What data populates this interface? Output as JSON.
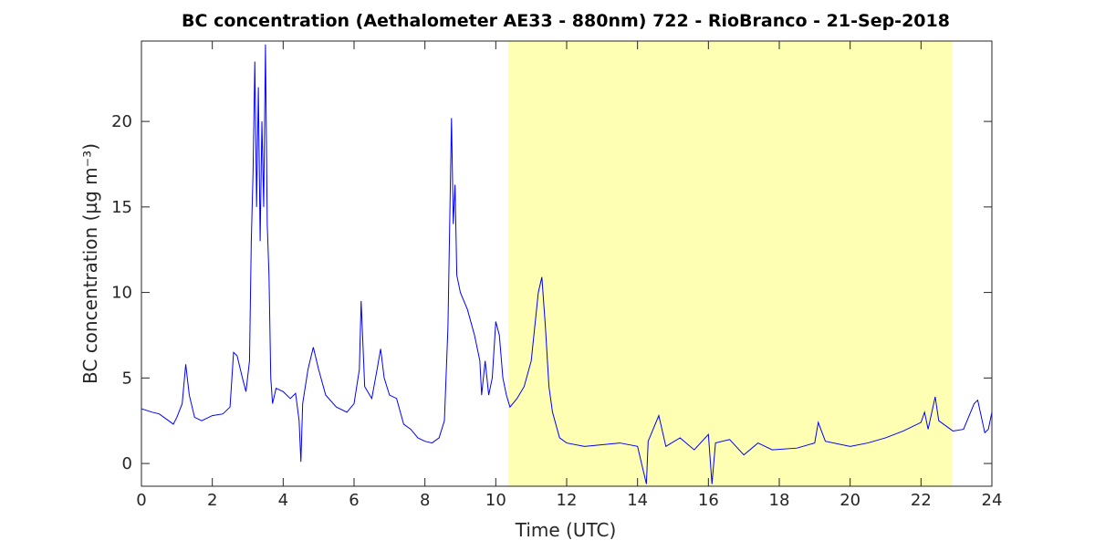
{
  "chart_data": {
    "type": "line",
    "title": "BC concentration (Aethalometer AE33 - 880nm) 722 - RioBranco - 21-Sep-2018",
    "xlabel": "Time (UTC)",
    "ylabel": "BC concentration (µg m⁻³)",
    "xlim": [
      0,
      24
    ],
    "xticks": [
      0,
      2,
      4,
      6,
      8,
      10,
      12,
      14,
      16,
      18,
      20,
      22,
      24
    ],
    "ylim": [
      -1.33,
      24.7
    ],
    "yticks": [
      0,
      5,
      10,
      15,
      20
    ],
    "highlight": {
      "x": [
        10.35,
        22.87
      ],
      "color": "#ffffb3"
    },
    "x": [
      0,
      0.3,
      0.5,
      0.7,
      0.9,
      1.0,
      1.15,
      1.25,
      1.35,
      1.5,
      1.7,
      2.0,
      2.3,
      2.5,
      2.6,
      2.7,
      2.85,
      2.95,
      3.05,
      3.1,
      3.15,
      3.2,
      3.25,
      3.3,
      3.35,
      3.4,
      3.45,
      3.5,
      3.55,
      3.6,
      3.65,
      3.7,
      3.8,
      4.0,
      4.2,
      4.35,
      4.45,
      4.5,
      4.55,
      4.7,
      4.85,
      5.0,
      5.2,
      5.5,
      5.8,
      6.0,
      6.15,
      6.2,
      6.3,
      6.5,
      6.65,
      6.75,
      6.85,
      7.0,
      7.2,
      7.4,
      7.6,
      7.8,
      8.0,
      8.2,
      8.4,
      8.55,
      8.65,
      8.75,
      8.8,
      8.85,
      8.9,
      9.0,
      9.2,
      9.4,
      9.55,
      9.6,
      9.7,
      9.8,
      9.9,
      10.0,
      10.1,
      10.2,
      10.3,
      10.4,
      10.6,
      10.8,
      11.0,
      11.1,
      11.2,
      11.3,
      11.4,
      11.5,
      11.6,
      11.8,
      12.0,
      12.5,
      13.0,
      13.5,
      14.0,
      14.25,
      14.3,
      14.6,
      14.8,
      15.2,
      15.6,
      16.0,
      16.1,
      16.2,
      16.6,
      17.0,
      17.4,
      17.8,
      18.5,
      19.0,
      19.1,
      19.3,
      20.0,
      20.5,
      21.0,
      21.5,
      22.0,
      22.1,
      22.2,
      22.4,
      22.5,
      22.9,
      23.2,
      23.5,
      23.6,
      23.8,
      23.9,
      24.0
    ],
    "series": [
      {
        "name": "BC",
        "color": "#0000ff",
        "values": [
          3.2,
          3.0,
          2.9,
          2.6,
          2.3,
          2.7,
          3.5,
          5.8,
          4.0,
          2.7,
          2.5,
          2.8,
          2.9,
          3.3,
          6.5,
          6.3,
          5.0,
          4.2,
          6.0,
          13,
          17,
          23.5,
          15,
          22,
          13,
          20,
          15,
          24.5,
          14,
          11,
          5,
          3.5,
          4.4,
          4.2,
          3.8,
          4.1,
          2.5,
          0.1,
          3.5,
          5.5,
          6.8,
          5.5,
          4.0,
          3.3,
          3.0,
          3.5,
          5.5,
          9.5,
          4.5,
          3.8,
          5.5,
          6.7,
          5.0,
          4.0,
          3.8,
          2.3,
          2.0,
          1.5,
          1.3,
          1.2,
          1.5,
          2.5,
          8,
          20.2,
          14,
          16.3,
          11,
          10,
          9.0,
          7.5,
          6,
          4,
          6,
          4,
          5,
          8.3,
          7.5,
          5,
          4,
          3.3,
          3.8,
          4.5,
          6,
          8,
          10,
          10.9,
          8,
          4.5,
          3.0,
          1.5,
          1.2,
          1.0,
          1.1,
          1.2,
          1.0,
          -1.2,
          1.3,
          2.8,
          1.0,
          1.5,
          0.8,
          1.7,
          -1.2,
          1.2,
          1.4,
          0.5,
          1.2,
          0.8,
          0.9,
          1.2,
          2.4,
          1.3,
          1.0,
          1.2,
          1.5,
          1.9,
          2.4,
          3.0,
          2.0,
          3.9,
          2.5,
          1.9,
          2.0,
          3.5,
          3.7,
          1.8,
          2.0,
          3.0
        ]
      }
    ]
  }
}
